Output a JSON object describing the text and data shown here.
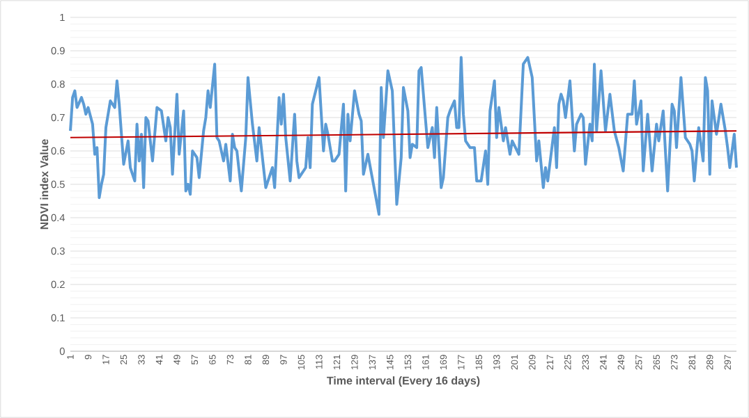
{
  "chart_data": {
    "type": "line",
    "xlabel": "Time interval (Every 16 days)",
    "ylabel": "NDVI index Value",
    "xlim": [
      1,
      301
    ],
    "xticks": [
      1,
      9,
      17,
      25,
      33,
      41,
      49,
      57,
      65,
      73,
      81,
      89,
      97,
      105,
      113,
      121,
      129,
      137,
      145,
      153,
      161,
      169,
      177,
      185,
      193,
      201,
      209,
      217,
      225,
      233,
      241,
      249,
      257,
      265,
      273,
      281,
      289,
      297
    ],
    "ylim": [
      0,
      1
    ],
    "yticks": [
      0,
      0.1,
      0.2,
      0.3,
      0.4,
      0.5,
      0.6,
      0.7,
      0.8,
      0.9,
      1
    ],
    "grid": "y",
    "series": [
      {
        "color": "#5b9bd5",
        "x": [
          1,
          2,
          3,
          4,
          6,
          7,
          8,
          9,
          11,
          12,
          13,
          14,
          15,
          16,
          17,
          19,
          21,
          22,
          23,
          25,
          27,
          28,
          30,
          31,
          32,
          33,
          34,
          35,
          36,
          38,
          40,
          42,
          44,
          45,
          46,
          47,
          49,
          50,
          52,
          53,
          54,
          55,
          56,
          58,
          59,
          61,
          62,
          63,
          64,
          66,
          67,
          68,
          70,
          71,
          73,
          74,
          75,
          76,
          78,
          80,
          81,
          83,
          85,
          86,
          89,
          92,
          93,
          95,
          96,
          97,
          98,
          100,
          102,
          103,
          104,
          107,
          108,
          109,
          110,
          113,
          115,
          116,
          117,
          119,
          120,
          122,
          124,
          125,
          126,
          127,
          129,
          131,
          132,
          133,
          135,
          140,
          141,
          142,
          144,
          146,
          148,
          150,
          151,
          153,
          154,
          155,
          157,
          158,
          159,
          161,
          162,
          164,
          165,
          166,
          168,
          169,
          171,
          172,
          174,
          175,
          176,
          177,
          178,
          179,
          181,
          183,
          184,
          186,
          188,
          189,
          190,
          192,
          193,
          194,
          196,
          197,
          199,
          200,
          203,
          205,
          207,
          209,
          211,
          212,
          214,
          215,
          216,
          219,
          220,
          221,
          222,
          223,
          224,
          226,
          228,
          229,
          231,
          232,
          233,
          235,
          236,
          237,
          238,
          240,
          242,
          244,
          246,
          248,
          250,
          252,
          254,
          255,
          256,
          258,
          259,
          261,
          263,
          265,
          266,
          268,
          270,
          272,
          273,
          274,
          276,
          278,
          280,
          281,
          282,
          284,
          286,
          287,
          288,
          289,
          290,
          292,
          294,
          296,
          297,
          298,
          300,
          301
        ],
        "values": [
          0.66,
          0.76,
          0.78,
          0.73,
          0.76,
          0.74,
          0.71,
          0.73,
          0.68,
          0.59,
          0.61,
          0.46,
          0.5,
          0.53,
          0.67,
          0.75,
          0.73,
          0.81,
          0.74,
          0.56,
          0.63,
          0.55,
          0.51,
          0.68,
          0.57,
          0.65,
          0.49,
          0.7,
          0.69,
          0.57,
          0.73,
          0.72,
          0.63,
          0.7,
          0.67,
          0.53,
          0.77,
          0.59,
          0.72,
          0.48,
          0.5,
          0.47,
          0.6,
          0.58,
          0.52,
          0.66,
          0.7,
          0.78,
          0.73,
          0.86,
          0.64,
          0.63,
          0.57,
          0.62,
          0.51,
          0.65,
          0.61,
          0.6,
          0.48,
          0.64,
          0.82,
          0.68,
          0.57,
          0.67,
          0.49,
          0.55,
          0.49,
          0.76,
          0.68,
          0.77,
          0.64,
          0.51,
          0.71,
          0.57,
          0.52,
          0.55,
          0.64,
          0.55,
          0.74,
          0.82,
          0.6,
          0.68,
          0.65,
          0.57,
          0.57,
          0.59,
          0.74,
          0.48,
          0.71,
          0.63,
          0.78,
          0.71,
          0.69,
          0.53,
          0.59,
          0.41,
          0.79,
          0.64,
          0.84,
          0.78,
          0.44,
          0.58,
          0.79,
          0.72,
          0.58,
          0.62,
          0.61,
          0.84,
          0.85,
          0.69,
          0.61,
          0.67,
          0.58,
          0.73,
          0.49,
          0.52,
          0.7,
          0.72,
          0.75,
          0.67,
          0.67,
          0.88,
          0.71,
          0.63,
          0.61,
          0.61,
          0.51,
          0.51,
          0.6,
          0.5,
          0.72,
          0.81,
          0.64,
          0.73,
          0.63,
          0.67,
          0.59,
          0.63,
          0.59,
          0.86,
          0.88,
          0.82,
          0.57,
          0.63,
          0.49,
          0.55,
          0.51,
          0.67,
          0.55,
          0.74,
          0.77,
          0.75,
          0.7,
          0.81,
          0.6,
          0.68,
          0.71,
          0.7,
          0.56,
          0.68,
          0.63,
          0.86,
          0.66,
          0.84,
          0.66,
          0.77,
          0.66,
          0.61,
          0.54,
          0.71,
          0.71,
          0.81,
          0.68,
          0.75,
          0.54,
          0.71,
          0.54,
          0.68,
          0.63,
          0.72,
          0.48,
          0.74,
          0.72,
          0.61,
          0.82,
          0.64,
          0.62,
          0.6,
          0.51,
          0.67,
          0.57,
          0.82,
          0.78,
          0.53,
          0.75,
          0.65,
          0.74,
          0.66,
          0.61,
          0.55,
          0.65,
          0.55
        ]
      },
      {
        "type": "line",
        "color": "#c00000",
        "x": [
          1,
          301
        ],
        "values": [
          0.64,
          0.66
        ]
      }
    ]
  }
}
